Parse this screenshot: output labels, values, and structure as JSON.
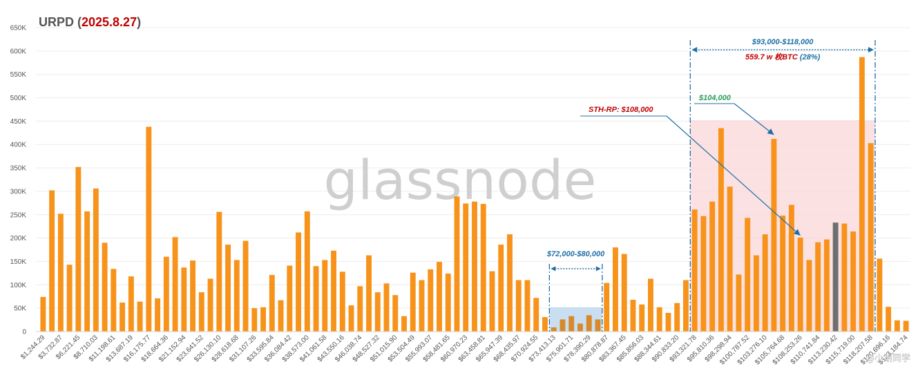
{
  "title": {
    "prefix": "URPD (",
    "date": "2025.8.27",
    "suffix": ")"
  },
  "watermark": "glassnode",
  "corner_watermark": "@小胡同学",
  "colors": {
    "bar": "#F7931A",
    "highlight_bar": "#6E6E6E",
    "accent_red": "#C00000",
    "accent_blue": "#1F6FA5",
    "accent_green": "#2E9E5B",
    "band_red": "#F9D7D7",
    "band_blue": "#BFD9EE"
  },
  "annotations": {
    "range_left": "$72,000-$80,000",
    "range_right": "$93,000-$118,000",
    "range_right_sub_value": "559.7 w 枚BTC",
    "range_right_sub_pct": "(28%)",
    "sth": "STH-RP: $108,000",
    "price_104": "$104,000"
  },
  "chart_data": {
    "type": "bar",
    "title": "URPD (2025.8.27)",
    "xlabel": "",
    "ylabel": "",
    "ylim": [
      0,
      650000
    ],
    "yticks": [
      "0",
      "50K",
      "100K",
      "150K",
      "200K",
      "250K",
      "300K",
      "350K",
      "400K",
      "450K",
      "500K",
      "550K",
      "600K",
      "650K"
    ],
    "grid": true,
    "tick_labels": [
      "$1,244.29",
      "$3,732.87",
      "$6,221.45",
      "$8,710.03",
      "$11,198.61",
      "$13,687.19",
      "$16,175.77",
      "$18,664.36",
      "$21,152.94",
      "$23,641.52",
      "$26,130.10",
      "$28,618.68",
      "$31,107.26",
      "$33,595.84",
      "$36,084.42",
      "$38,573.00",
      "$41,061.58",
      "$43,550.16",
      "$46,038.74",
      "$48,527.32",
      "$51,015.90",
      "$53,504.49",
      "$55,993.07",
      "$58,481.65",
      "$60,970.23",
      "$63,458.81",
      "$65,947.39",
      "$68,435.97",
      "$70,924.55",
      "$73,413.13",
      "$75,901.71",
      "$78,390.29",
      "$80,878.87",
      "$83,367.45",
      "$85,856.03",
      "$88,344.61",
      "$90,833.20",
      "$93,321.78",
      "$95,810.36",
      "$98,298.94",
      "$100,787.52",
      "$103,276.10",
      "$105,764.68",
      "$108,253.26",
      "$110,741.84",
      "$113,230.42",
      "$115,719.00",
      "$118,207.58",
      "$120,696.16",
      "$123,184.74"
    ],
    "values": [
      74000,
      302000,
      252000,
      143000,
      352000,
      257000,
      306000,
      190000,
      134000,
      62000,
      118000,
      64000,
      438000,
      71000,
      160000,
      202000,
      137000,
      152000,
      84000,
      113000,
      256000,
      186000,
      153000,
      194000,
      50000,
      52000,
      121000,
      67000,
      141000,
      212000,
      257000,
      140000,
      153000,
      173000,
      128000,
      56000,
      97000,
      163000,
      84000,
      103000,
      78000,
      33000,
      126000,
      110000,
      133000,
      149000,
      124000,
      289000,
      274000,
      278000,
      273000,
      129000,
      186000,
      208000,
      110000,
      110000,
      72000,
      31000,
      9000,
      26000,
      33000,
      17000,
      35000,
      26000,
      104000,
      180000,
      166000,
      68000,
      58000,
      113000,
      52000,
      40000,
      61000,
      110000,
      261000,
      247000,
      278000,
      435000,
      310000,
      122000,
      243000,
      163000,
      208000,
      412000,
      248000,
      271000,
      201000,
      153000,
      191000,
      197000,
      233000,
      231000,
      214000,
      587000,
      403000,
      156000,
      53000,
      24000,
      23000
    ],
    "highlight_index": 90
  }
}
